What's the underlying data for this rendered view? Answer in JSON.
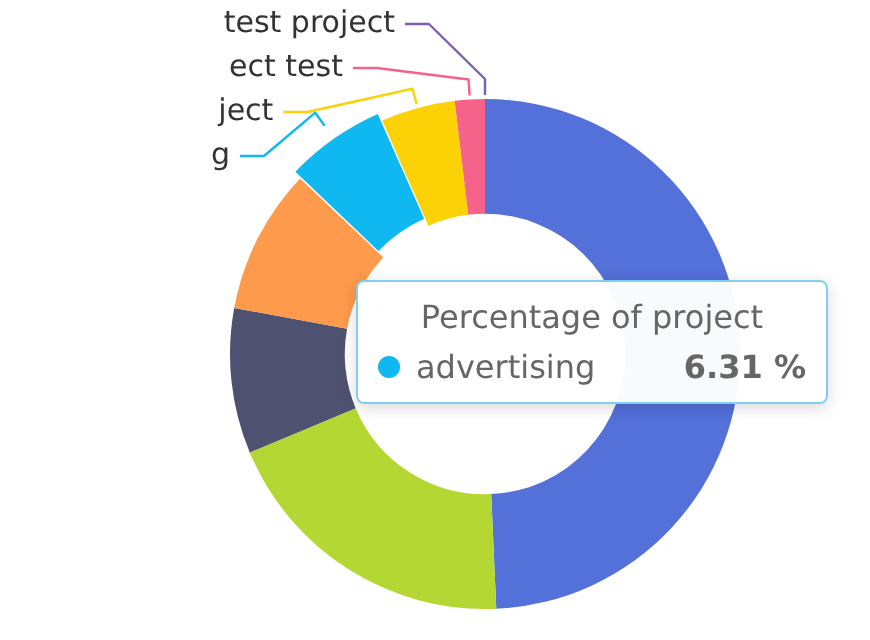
{
  "chart_data": {
    "type": "donut",
    "title": "Percentage of project",
    "categories": [
      null,
      null,
      null,
      null,
      "g",
      "ject",
      "ect test",
      "test project"
    ],
    "values": [
      49.3,
      19.4,
      9.2,
      9.2,
      6.31,
      4.7,
      1.9,
      0
    ],
    "colors": [
      "#5470d9",
      "#b5d733",
      "#4f5170",
      "#fd9a4c",
      "#0fb8f0",
      "#fcd207",
      "#f5638a",
      "#7a5fb5"
    ],
    "annotations": [
      "advertising",
      "6.31 %"
    ],
    "legend": false
  }
}
